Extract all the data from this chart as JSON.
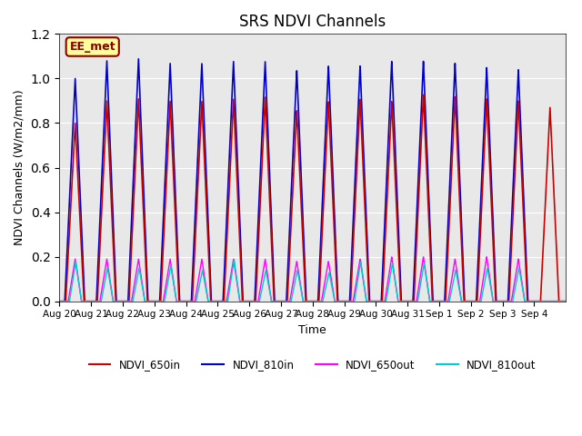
{
  "title": "SRS NDVI Channels",
  "ylabel": "NDVI Channels (W/m2/mm)",
  "xlabel": "Time",
  "ylim": [
    0.0,
    1.2
  ],
  "background_color": "#e8e8e8",
  "annotation_text": "EE_met",
  "annotation_bg": "#ffff99",
  "annotation_border": "#8b0000",
  "series": {
    "NDVI_650in": {
      "color": "#cc0000",
      "lw": 1.2
    },
    "NDVI_810in": {
      "color": "#0000cc",
      "lw": 1.2
    },
    "NDVI_650out": {
      "color": "#ff00ff",
      "lw": 1.0
    },
    "NDVI_810out": {
      "color": "#00cccc",
      "lw": 1.0
    }
  },
  "num_cycles": 15,
  "x_tick_labels": [
    "Aug 20",
    "Aug 21",
    "Aug 22",
    "Aug 23",
    "Aug 24",
    "Aug 25",
    "Aug 26",
    "Aug 27",
    "Aug 28",
    "Aug 29",
    "Aug 30",
    "Aug 31",
    "Sep 1",
    "Sep 2",
    "Sep 3",
    "Sep 4"
  ],
  "peak_650in": [
    0.8,
    0.9,
    0.91,
    0.9,
    0.9,
    0.91,
    0.92,
    0.86,
    0.9,
    0.91,
    0.9,
    0.93,
    0.92,
    0.91,
    0.9,
    0.87
  ],
  "peak_810in": [
    1.0,
    1.08,
    1.09,
    1.07,
    1.07,
    1.08,
    1.08,
    1.04,
    1.06,
    1.06,
    1.08,
    1.08,
    1.07,
    1.05,
    1.04,
    0.0
  ],
  "peak_650out": [
    0.19,
    0.19,
    0.19,
    0.19,
    0.19,
    0.19,
    0.19,
    0.18,
    0.18,
    0.19,
    0.2,
    0.2,
    0.19,
    0.2,
    0.19,
    0.0
  ],
  "peak_810out": [
    0.18,
    0.15,
    0.15,
    0.16,
    0.14,
    0.19,
    0.14,
    0.14,
    0.13,
    0.18,
    0.17,
    0.17,
    0.14,
    0.15,
    0.15,
    0.0
  ]
}
